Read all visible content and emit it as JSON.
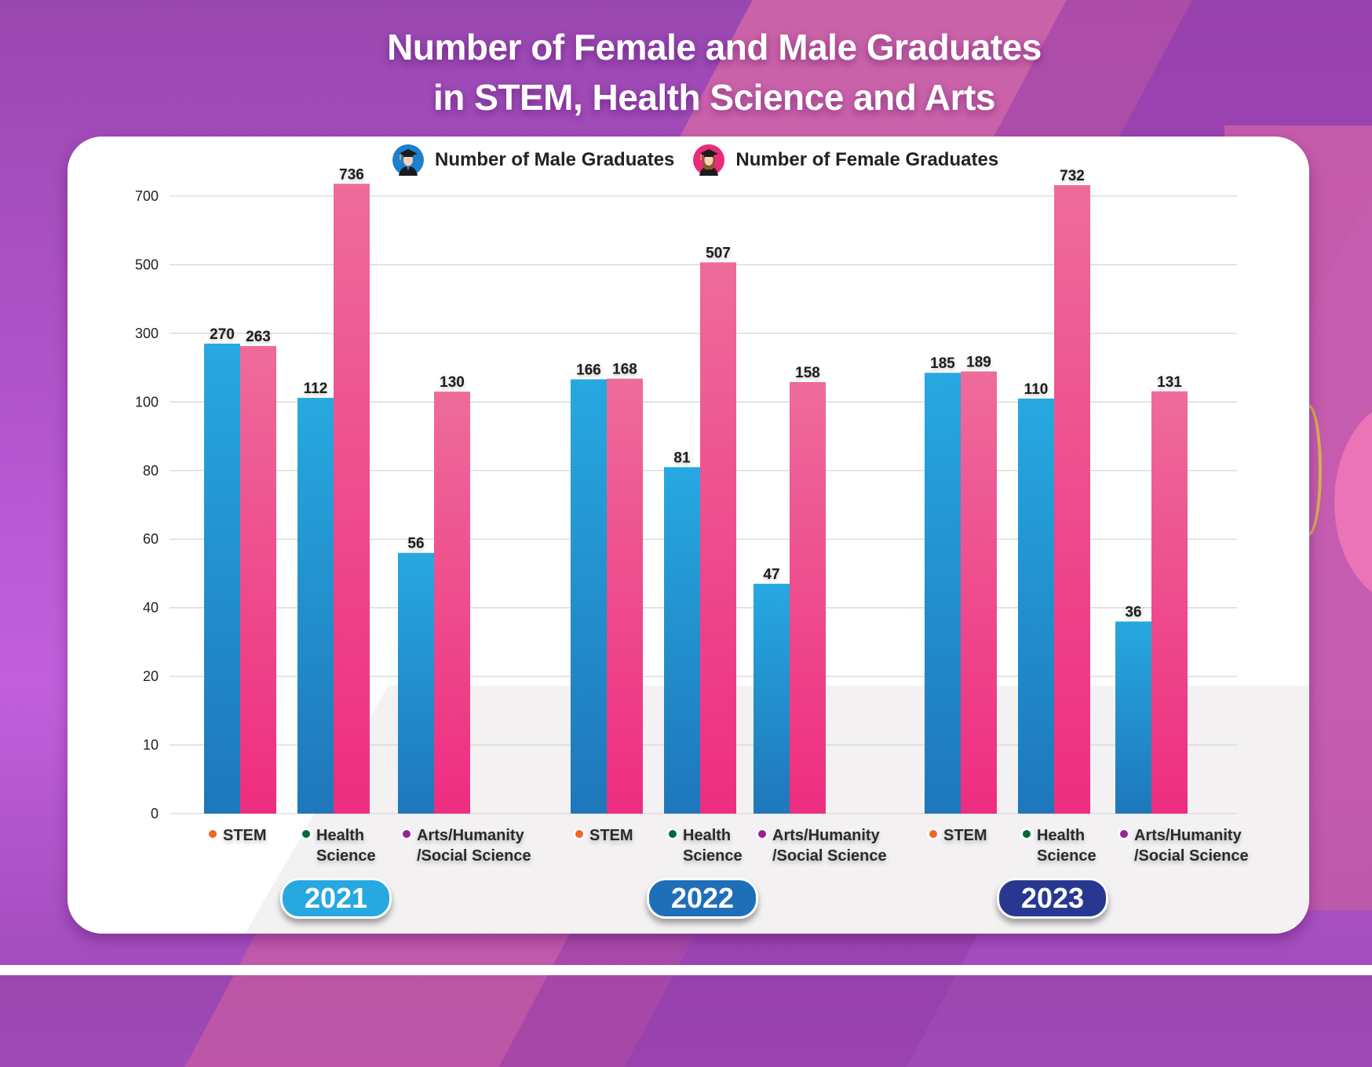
{
  "colors": {
    "male": "#27a8e0",
    "male_dark": "#1e77bb",
    "female": "#ee6b9a",
    "female_dark": "#ee2d80",
    "stem_dot": "#f26522",
    "health_dot": "#006b38",
    "arts_dot": "#92278f",
    "year_2021": "#27a8e0",
    "year_2022": "#1e6fb7",
    "year_2023": "#283891"
  },
  "legend": {
    "male_label": "Number of Male Graduates",
    "female_label": "Number of Female Graduates",
    "male_icon": "male-graduate-avatar-icon",
    "female_icon": "female-graduate-avatar-icon"
  },
  "chart_data": {
    "type": "bar",
    "title": "Number of Female and Male Graduates in STEM, Health Science and Arts",
    "title_line1": "Number of Female and Male Graduates",
    "title_line2": "in STEM, Health Science and Arts",
    "xlabel": "",
    "ylabel": "",
    "y_scale": "non-linear (piecewise between ticks)",
    "y_ticks": [
      0,
      10,
      20,
      40,
      60,
      80,
      100,
      300,
      500,
      700
    ],
    "ylim": [
      0,
      700
    ],
    "grid": true,
    "legend_position": "top-center",
    "categories": [
      "STEM",
      "Health Science",
      "Arts/Humanity/Social Science"
    ],
    "category_labels": [
      {
        "line1": "STEM",
        "line2": ""
      },
      {
        "line1": "Health",
        "line2": "Science"
      },
      {
        "line1": "Arts/Humanity",
        "line2": "/Social Science"
      }
    ],
    "groups": [
      {
        "year": "2021",
        "series": [
          {
            "name": "Number of Male Graduates",
            "values": [
              270,
              112,
              56
            ]
          },
          {
            "name": "Number of Female Graduates",
            "values": [
              263,
              736,
              130
            ]
          }
        ]
      },
      {
        "year": "2022",
        "series": [
          {
            "name": "Number of Male Graduates",
            "values": [
              166,
              81,
              47
            ]
          },
          {
            "name": "Number of Female Graduates",
            "values": [
              168,
              507,
              158
            ]
          }
        ]
      },
      {
        "year": "2023",
        "series": [
          {
            "name": "Number of Male Graduates",
            "values": [
              185,
              110,
              36
            ]
          },
          {
            "name": "Number of Female Graduates",
            "values": [
              189,
              732,
              131
            ]
          }
        ]
      }
    ]
  }
}
